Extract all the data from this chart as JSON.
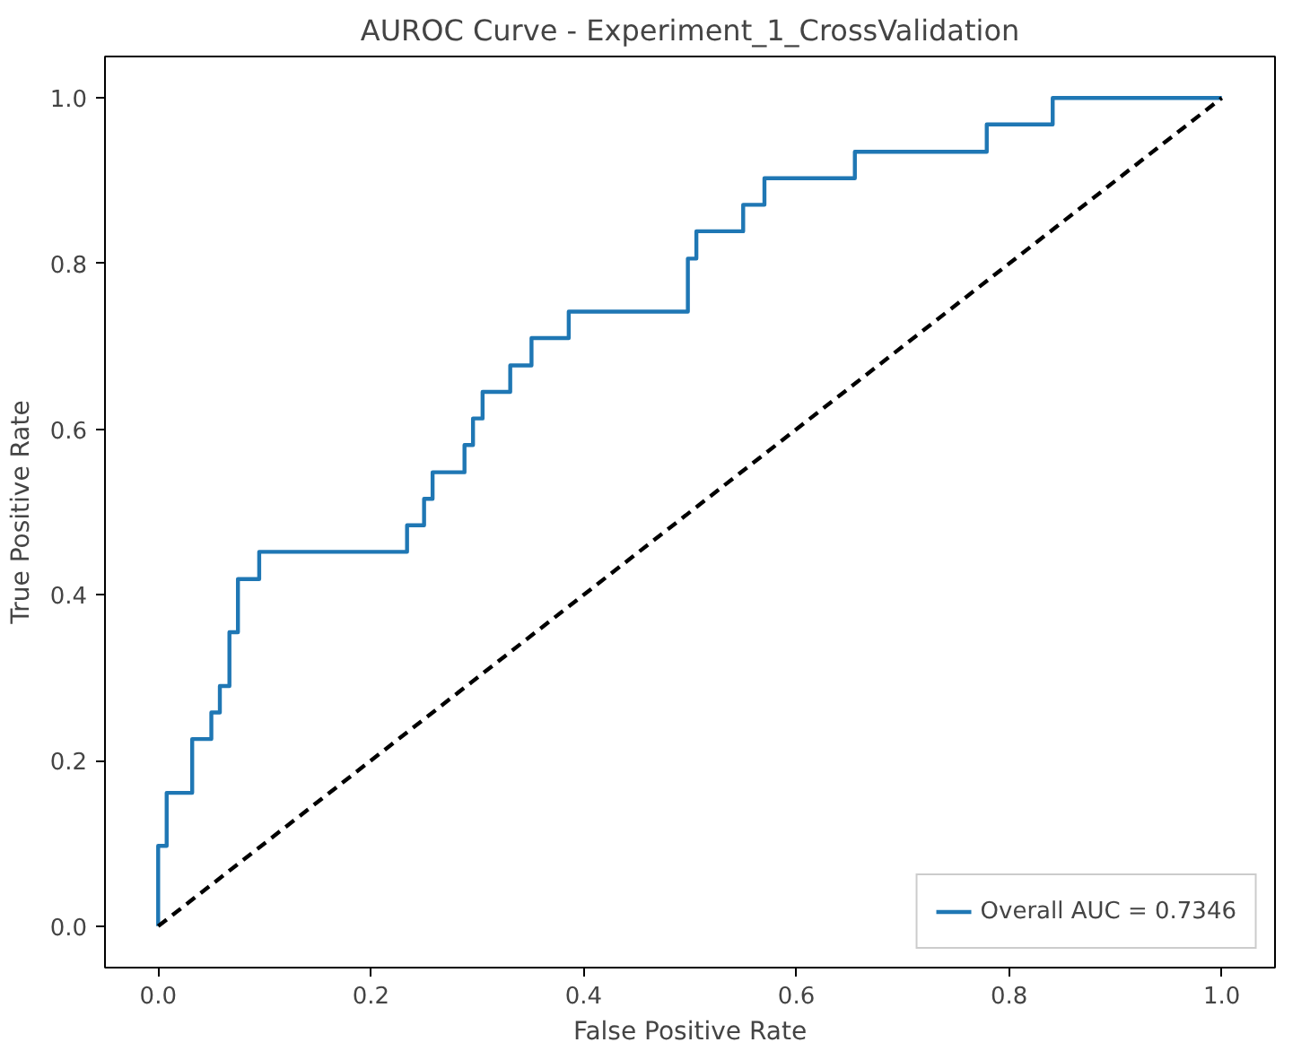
{
  "chart_data": {
    "type": "line",
    "title": "AUROC Curve - Experiment_1_CrossValidation",
    "xlabel": "False Positive Rate",
    "ylabel": "True Positive Rate",
    "series": [
      {
        "name": "Overall AUC = 0.7346",
        "color": "#1f77b4",
        "line_style": "solid",
        "x": [
          0,
          0,
          0.008,
          0.008,
          0.032,
          0.032,
          0.05,
          0.05,
          0.058,
          0.058,
          0.067,
          0.067,
          0.075,
          0.075,
          0.095,
          0.095,
          0.234,
          0.234,
          0.25,
          0.25,
          0.258,
          0.258,
          0.288,
          0.288,
          0.296,
          0.296,
          0.305,
          0.305,
          0.331,
          0.331,
          0.351,
          0.351,
          0.386,
          0.386,
          0.498,
          0.498,
          0.506,
          0.506,
          0.55,
          0.55,
          0.57,
          0.57,
          0.655,
          0.655,
          0.779,
          0.779,
          0.841,
          0.841,
          1.0
        ],
        "values": [
          0,
          0.097,
          0.097,
          0.161,
          0.161,
          0.226,
          0.226,
          0.258,
          0.258,
          0.29,
          0.29,
          0.355,
          0.355,
          0.419,
          0.419,
          0.452,
          0.452,
          0.484,
          0.484,
          0.516,
          0.516,
          0.548,
          0.548,
          0.581,
          0.581,
          0.613,
          0.613,
          0.645,
          0.645,
          0.677,
          0.677,
          0.71,
          0.71,
          0.742,
          0.742,
          0.806,
          0.806,
          0.839,
          0.839,
          0.871,
          0.871,
          0.903,
          0.903,
          0.935,
          0.935,
          0.968,
          0.968,
          1.0,
          1.0
        ]
      },
      {
        "color": "#000000",
        "line_style": "dashed",
        "x": [
          0,
          1
        ],
        "values": [
          0,
          1
        ]
      }
    ],
    "xlim": [
      -0.05,
      1.05
    ],
    "ylim": [
      -0.05,
      1.05
    ],
    "xticks": [
      {
        "value": 0,
        "label": "0.0"
      },
      {
        "value": 0.2,
        "label": "0.2"
      },
      {
        "value": 0.4,
        "label": "0.4"
      },
      {
        "value": 0.6,
        "label": "0.6"
      },
      {
        "value": 0.8,
        "label": "0.8"
      },
      {
        "value": 1,
        "label": "1.0"
      }
    ],
    "yticks": [
      {
        "value": 0,
        "label": "0.0"
      },
      {
        "value": 0.2,
        "label": "0.2"
      },
      {
        "value": 0.4,
        "label": "0.4"
      },
      {
        "value": 0.6,
        "label": "0.6"
      },
      {
        "value": 0.8,
        "label": "0.8"
      },
      {
        "value": 1,
        "label": "1.0"
      }
    ],
    "grid": false,
    "legend": "bottom right"
  }
}
